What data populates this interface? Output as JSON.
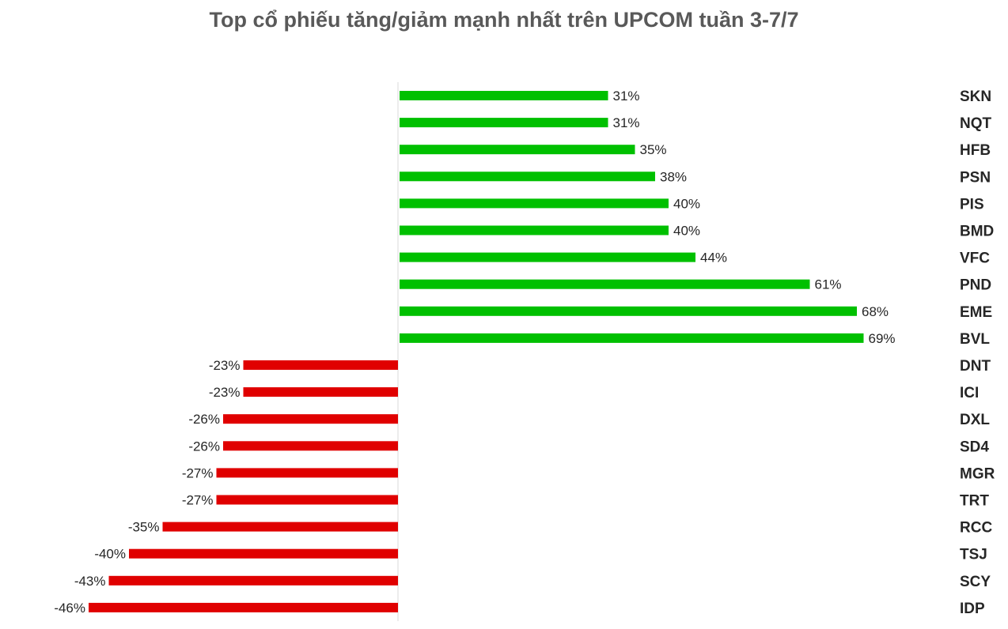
{
  "chart_data": {
    "type": "bar",
    "orientation": "horizontal",
    "title": "Top cổ phiếu tăng/giảm mạnh nhất trên UPCOM tuần 3-7/7",
    "categories": [
      "SKN",
      "NQT",
      "HFB",
      "PSN",
      "PIS",
      "BMD",
      "VFC",
      "PND",
      "EME",
      "BVL",
      "DNT",
      "ICI",
      "DXL",
      "SD4",
      "MGR",
      "TRT",
      "RCC",
      "TSJ",
      "SCY",
      "IDP"
    ],
    "values": [
      31,
      31,
      35,
      38,
      40,
      40,
      44,
      61,
      68,
      69,
      -23,
      -23,
      -26,
      -26,
      -27,
      -27,
      -35,
      -40,
      -43,
      -46
    ],
    "labels": [
      "31%",
      "31%",
      "35%",
      "38%",
      "40%",
      "40%",
      "44%",
      "61%",
      "68%",
      "69%",
      "-23%",
      "-23%",
      "-26%",
      "-26%",
      "-27%",
      "-27%",
      "-35%",
      "-40%",
      "-43%",
      "-46%"
    ],
    "unit": "%",
    "xlim": [
      -46,
      69
    ],
    "grid": false,
    "legend": "none",
    "colors": {
      "positive": "#00c000",
      "negative": "#e00000",
      "axis": "#d9d9d9"
    }
  }
}
